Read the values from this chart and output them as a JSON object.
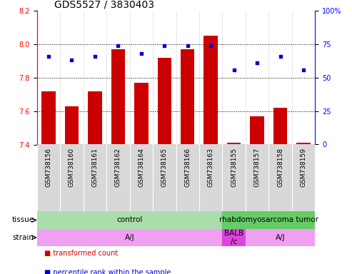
{
  "title": "GDS5527 / 3830403",
  "samples": [
    "GSM738156",
    "GSM738160",
    "GSM738161",
    "GSM738162",
    "GSM738164",
    "GSM738165",
    "GSM738166",
    "GSM738163",
    "GSM738155",
    "GSM738157",
    "GSM738158",
    "GSM738159"
  ],
  "bar_values": [
    7.72,
    7.63,
    7.72,
    7.97,
    7.77,
    7.92,
    7.97,
    8.05,
    7.41,
    7.57,
    7.62,
    7.41
  ],
  "bar_bottom": 7.4,
  "dot_values": [
    66,
    63,
    66,
    74,
    68,
    74,
    74,
    74,
    56,
    61,
    66,
    56
  ],
  "ylim_left": [
    7.4,
    8.2
  ],
  "ylim_right": [
    0,
    100
  ],
  "yticks_left": [
    7.4,
    7.6,
    7.8,
    8.0,
    8.2
  ],
  "yticks_right": [
    0,
    25,
    50,
    75,
    100
  ],
  "ytick_labels_right": [
    "0",
    "25",
    "50",
    "75",
    "100%"
  ],
  "bar_color": "#cc0000",
  "dot_color": "#0000cc",
  "bar_width": 0.6,
  "grid_lines": [
    7.6,
    7.8,
    8.0
  ],
  "tissue_groups": [
    {
      "label": "control",
      "start": 0,
      "end": 8,
      "color": "#aaddaa"
    },
    {
      "label": "rhabdomyosarcoma tumor",
      "start": 8,
      "end": 12,
      "color": "#66cc66"
    }
  ],
  "strain_groups": [
    {
      "label": "A/J",
      "start": 0,
      "end": 8,
      "color": "#f0a0f0"
    },
    {
      "label": "BALB\n/c",
      "start": 8,
      "end": 9,
      "color": "#dd44dd"
    },
    {
      "label": "A/J",
      "start": 9,
      "end": 12,
      "color": "#f0a0f0"
    }
  ],
  "legend_items": [
    {
      "label": "transformed count",
      "color": "#cc0000"
    },
    {
      "label": "percentile rank within the sample",
      "color": "#0000cc"
    }
  ],
  "tissue_label": "tissue",
  "strain_label": "strain",
  "background_color": "#ffffff",
  "plot_bg_color": "#ffffff",
  "sample_bg_color": "#d8d8d8",
  "title_fontsize": 10,
  "tick_fontsize": 7,
  "sample_fontsize": 6.5,
  "group_fontsize": 7.5
}
